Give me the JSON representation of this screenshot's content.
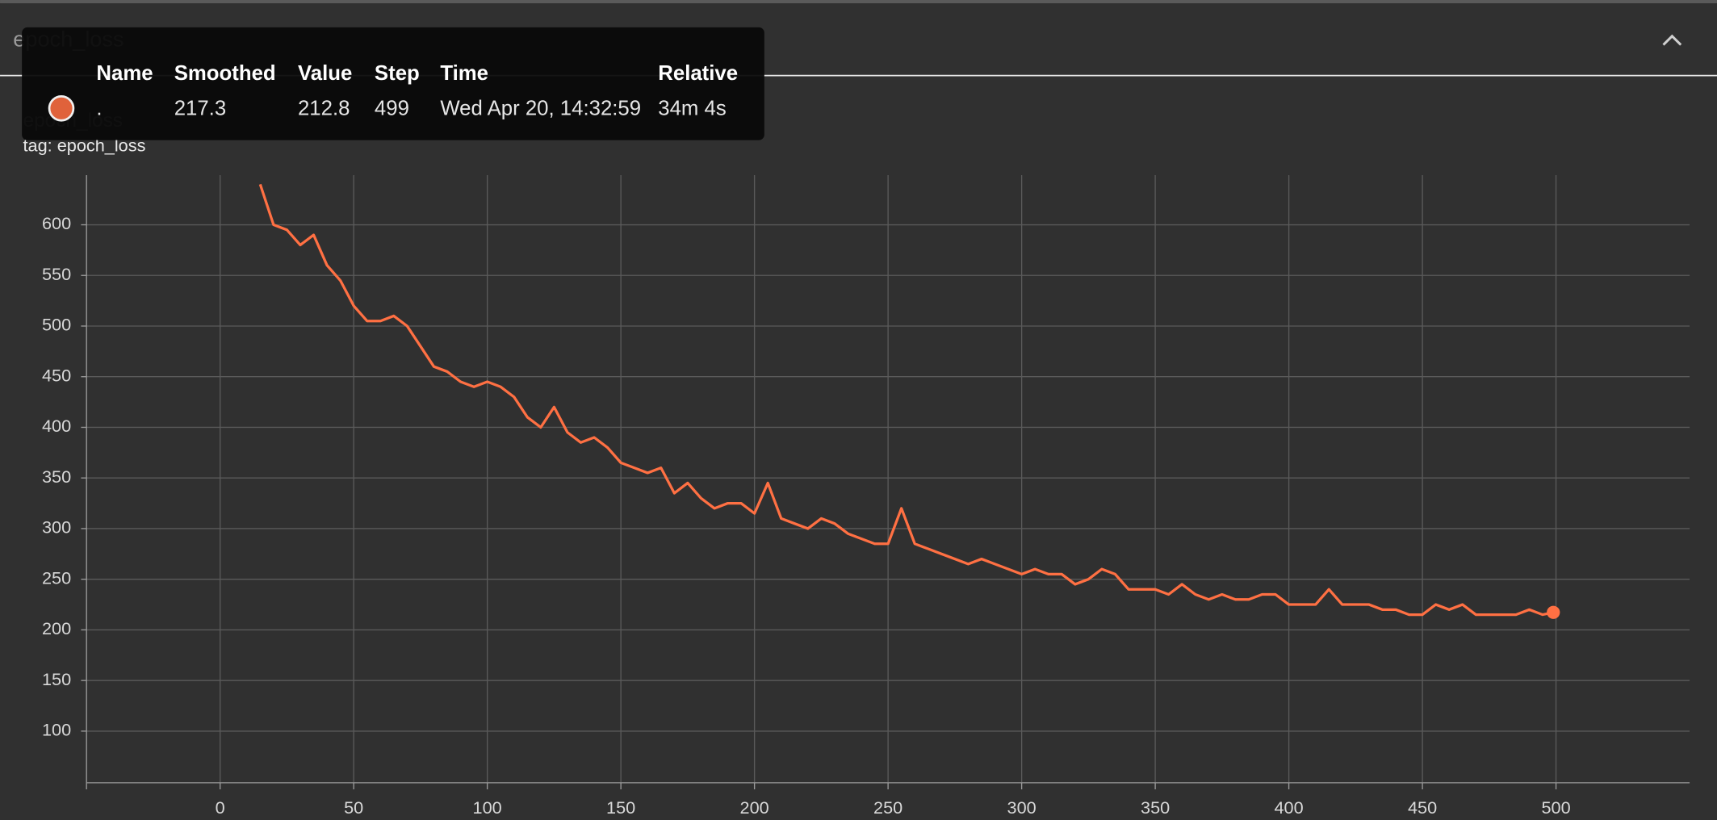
{
  "header": {
    "title": "epoch_loss"
  },
  "tooltip": {
    "columns": [
      "Name",
      "Smoothed",
      "Value",
      "Step",
      "Time",
      "Relative"
    ],
    "row": {
      "name": ".",
      "smoothed": 217.3,
      "value": 212.8,
      "step": 499,
      "time": "Wed Apr 20, 14:32:59",
      "relative": "34m 4s"
    }
  },
  "chart_data": {
    "type": "line",
    "title": "epoch_loss",
    "subtitle": "tag: epoch_loss",
    "x": [
      15,
      20,
      25,
      30,
      35,
      40,
      45,
      50,
      55,
      60,
      65,
      70,
      75,
      80,
      85,
      90,
      95,
      100,
      105,
      110,
      115,
      120,
      125,
      130,
      135,
      140,
      145,
      150,
      155,
      160,
      165,
      170,
      175,
      180,
      185,
      190,
      195,
      200,
      205,
      210,
      215,
      220,
      225,
      230,
      235,
      240,
      245,
      250,
      255,
      260,
      265,
      270,
      275,
      280,
      285,
      290,
      295,
      300,
      305,
      310,
      315,
      320,
      325,
      330,
      335,
      340,
      345,
      350,
      355,
      360,
      365,
      370,
      375,
      380,
      385,
      390,
      395,
      400,
      405,
      410,
      415,
      420,
      425,
      430,
      435,
      440,
      445,
      450,
      455,
      460,
      465,
      470,
      475,
      480,
      485,
      490,
      495,
      499
    ],
    "series": [
      {
        "name": "epoch_loss",
        "color": "#ff7043",
        "values": [
          640,
          600,
          595,
          580,
          590,
          560,
          545,
          520,
          505,
          505,
          510,
          500,
          480,
          460,
          455,
          445,
          440,
          445,
          440,
          430,
          410,
          400,
          420,
          395,
          385,
          390,
          380,
          365,
          360,
          355,
          360,
          335,
          345,
          330,
          320,
          325,
          325,
          315,
          345,
          310,
          305,
          300,
          310,
          305,
          295,
          290,
          285,
          285,
          320,
          285,
          280,
          275,
          270,
          265,
          270,
          265,
          260,
          255,
          260,
          255,
          255,
          245,
          250,
          260,
          255,
          240,
          240,
          240,
          235,
          245,
          235,
          230,
          235,
          230,
          230,
          235,
          235,
          225,
          225,
          225,
          240,
          225,
          225,
          225,
          220,
          220,
          215,
          215,
          225,
          220,
          225,
          215,
          215,
          215,
          215,
          220,
          215,
          217.3
        ]
      }
    ],
    "xlim": [
      -50,
      550
    ],
    "ylim": [
      49,
      649
    ],
    "xticks": [
      0,
      50,
      100,
      150,
      200,
      250,
      300,
      350,
      400,
      450,
      500
    ],
    "yticks": [
      100,
      150,
      200,
      250,
      300,
      350,
      400,
      450,
      500,
      550,
      600
    ],
    "grid": true
  }
}
